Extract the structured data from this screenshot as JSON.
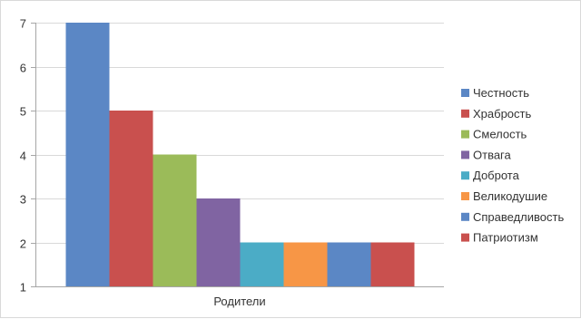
{
  "chart_data": {
    "type": "bar",
    "categories": [
      "Родители"
    ],
    "ylim": [
      1,
      7
    ],
    "yticks": [
      1,
      2,
      3,
      4,
      5,
      6,
      7
    ],
    "grid": true,
    "legend_position": "right",
    "series": [
      {
        "name": "Честность",
        "values": [
          7
        ],
        "color": "#5b87c5"
      },
      {
        "name": "Храбрость",
        "values": [
          5
        ],
        "color": "#c9504e"
      },
      {
        "name": "Смелость",
        "values": [
          4
        ],
        "color": "#9bbb59"
      },
      {
        "name": "Отвага",
        "values": [
          3
        ],
        "color": "#8064a2"
      },
      {
        "name": "Доброта",
        "values": [
          2
        ],
        "color": "#4bacc6"
      },
      {
        "name": "Великодушие",
        "values": [
          2
        ],
        "color": "#f79646"
      },
      {
        "name": "Справедливость",
        "values": [
          2
        ],
        "color": "#5b87c5"
      },
      {
        "name": "Патриотизм",
        "values": [
          2
        ],
        "color": "#c9504e"
      }
    ]
  }
}
